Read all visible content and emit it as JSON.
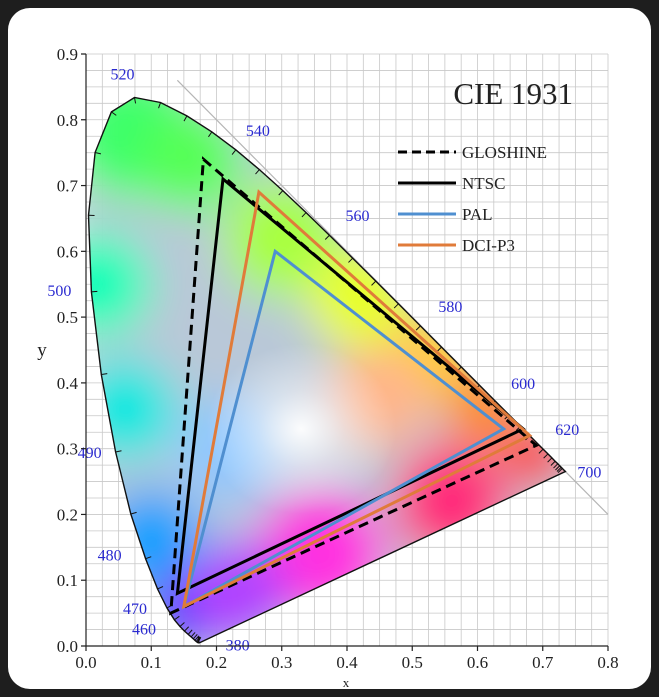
{
  "chart_data": {
    "type": "scatter",
    "title": "CIE 1931",
    "xlabel": "x",
    "ylabel": "y",
    "xlim": [
      0,
      0.8
    ],
    "ylim": [
      0,
      0.9
    ],
    "x_ticks": [
      "0.0",
      "0.1",
      "0.2",
      "0.3",
      "0.4",
      "0.5",
      "0.6",
      "0.7",
      "0.8"
    ],
    "y_ticks": [
      "0.0",
      "0.1",
      "0.2",
      "0.3",
      "0.4",
      "0.5",
      "0.6",
      "0.7",
      "0.8",
      "0.9"
    ],
    "grid": true,
    "legend_position": "top-right",
    "spectral_locus": [
      [
        0.1741,
        0.005
      ],
      [
        0.1738,
        0.0049
      ],
      [
        0.1736,
        0.0049
      ],
      [
        0.1733,
        0.0048
      ],
      [
        0.173,
        0.0048
      ],
      [
        0.1726,
        0.0048
      ],
      [
        0.1721,
        0.0048
      ],
      [
        0.1714,
        0.0051
      ],
      [
        0.1703,
        0.0058
      ],
      [
        0.1689,
        0.0069
      ],
      [
        0.1669,
        0.0086
      ],
      [
        0.1644,
        0.0109
      ],
      [
        0.1611,
        0.0138
      ],
      [
        0.1566,
        0.0177
      ],
      [
        0.151,
        0.0227
      ],
      [
        0.144,
        0.0297
      ],
      [
        0.1355,
        0.0399
      ],
      [
        0.1241,
        0.0578
      ],
      [
        0.1096,
        0.0868
      ],
      [
        0.0913,
        0.1327
      ],
      [
        0.0687,
        0.2007
      ],
      [
        0.0454,
        0.295
      ],
      [
        0.0235,
        0.4127
      ],
      [
        0.0082,
        0.5384
      ],
      [
        0.0039,
        0.6548
      ],
      [
        0.0139,
        0.7502
      ],
      [
        0.0389,
        0.812
      ],
      [
        0.0743,
        0.8338
      ],
      [
        0.1142,
        0.8262
      ],
      [
        0.1547,
        0.8059
      ],
      [
        0.1929,
        0.7816
      ],
      [
        0.2296,
        0.7543
      ],
      [
        0.2658,
        0.7243
      ],
      [
        0.3016,
        0.6923
      ],
      [
        0.3373,
        0.6589
      ],
      [
        0.3731,
        0.6245
      ],
      [
        0.4087,
        0.5896
      ],
      [
        0.4441,
        0.5547
      ],
      [
        0.4788,
        0.5202
      ],
      [
        0.5125,
        0.4866
      ],
      [
        0.5448,
        0.4544
      ],
      [
        0.5752,
        0.4242
      ],
      [
        0.6029,
        0.3965
      ],
      [
        0.627,
        0.3725
      ],
      [
        0.6482,
        0.3514
      ],
      [
        0.6658,
        0.334
      ],
      [
        0.6801,
        0.3197
      ],
      [
        0.6915,
        0.3083
      ],
      [
        0.7006,
        0.2993
      ],
      [
        0.7079,
        0.292
      ],
      [
        0.714,
        0.2859
      ],
      [
        0.719,
        0.2809
      ],
      [
        0.723,
        0.277
      ],
      [
        0.726,
        0.274
      ],
      [
        0.7283,
        0.2717
      ],
      [
        0.73,
        0.27
      ],
      [
        0.7311,
        0.2689
      ],
      [
        0.732,
        0.268
      ],
      [
        0.7327,
        0.2673
      ],
      [
        0.7334,
        0.2666
      ],
      [
        0.734,
        0.266
      ],
      [
        0.7344,
        0.2656
      ],
      [
        0.7346,
        0.2654
      ],
      [
        0.7347,
        0.2653
      ]
    ],
    "wavelength_labels": [
      {
        "nm": "380",
        "x": 0.1741,
        "y": 0.005
      },
      {
        "nm": "460",
        "x": 0.144,
        "y": 0.0297
      },
      {
        "nm": "470",
        "x": 0.1241,
        "y": 0.0578
      },
      {
        "nm": "480",
        "x": 0.0913,
        "y": 0.1327
      },
      {
        "nm": "490",
        "x": 0.0454,
        "y": 0.295
      },
      {
        "nm": "500",
        "x": 0.0082,
        "y": 0.5384
      },
      {
        "nm": "520",
        "x": 0.0743,
        "y": 0.8338
      },
      {
        "nm": "540",
        "x": 0.2296,
        "y": 0.7543
      },
      {
        "nm": "560",
        "x": 0.3731,
        "y": 0.6245
      },
      {
        "nm": "580",
        "x": 0.5125,
        "y": 0.4866
      },
      {
        "nm": "600",
        "x": 0.627,
        "y": 0.3725
      },
      {
        "nm": "620",
        "x": 0.6915,
        "y": 0.3083
      },
      {
        "nm": "700",
        "x": 0.7347,
        "y": 0.2653
      }
    ],
    "series": [
      {
        "name": "GLOSHINE",
        "color": "#000000",
        "dash": true,
        "points": [
          [
            0.18,
            0.74
          ],
          [
            0.69,
            0.305
          ],
          [
            0.13,
            0.05
          ]
        ]
      },
      {
        "name": "NTSC",
        "color": "#000000",
        "dash": false,
        "points": [
          [
            0.21,
            0.71
          ],
          [
            0.67,
            0.33
          ],
          [
            0.14,
            0.08
          ]
        ]
      },
      {
        "name": "PAL",
        "color": "#4f8fd0",
        "dash": false,
        "points": [
          [
            0.29,
            0.6
          ],
          [
            0.64,
            0.33
          ],
          [
            0.15,
            0.06
          ]
        ]
      },
      {
        "name": "DCI-P3",
        "color": "#e07b3a",
        "dash": false,
        "points": [
          [
            0.265,
            0.69
          ],
          [
            0.68,
            0.32
          ],
          [
            0.15,
            0.06
          ]
        ]
      }
    ]
  }
}
